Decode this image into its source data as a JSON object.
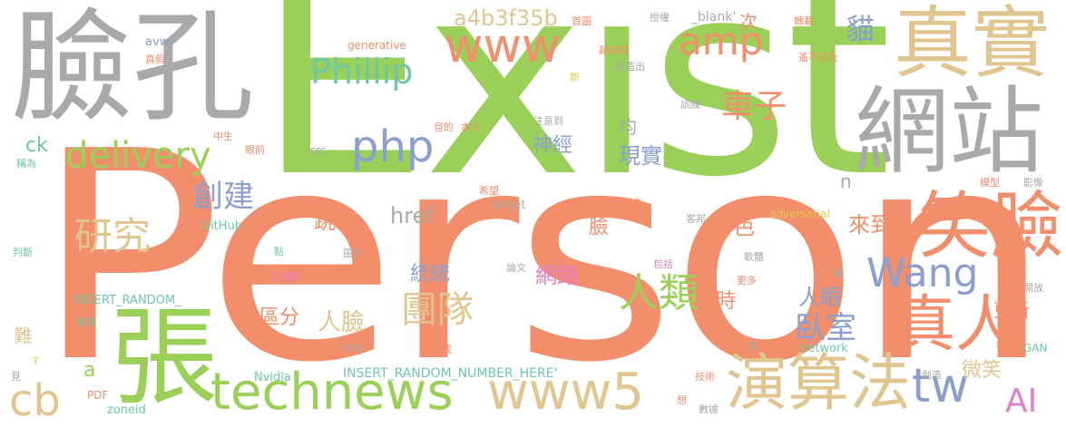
{
  "colors": {
    "orange": "#f28e6b",
    "green": "#9bd058",
    "tan": "#e0c58f",
    "gray": "#a9a9a9",
    "teal": "#6fc8a5",
    "blue": "#8a9fcf",
    "pink": "#e07fc5",
    "yellow": "#e6c84a"
  },
  "words": {
    "exist": "Exist",
    "person": "Person",
    "lian_kong": "臉孔",
    "zhen_shi": "真實",
    "wang_zhan": "網站",
    "zhang": "張",
    "xiao_lian": "笑臉",
    "zhen_ren": "真人",
    "yan_suan_fa": "演算法",
    "technews": "technews",
    "www5": "www5",
    "www": "www",
    "amp": "amp",
    "phillip": "Phillip",
    "php": "php",
    "delivery": "delivery",
    "a4b3f35b": "a4b3f35b",
    "wang": "Wang",
    "tw": "tw",
    "ai": "AI",
    "cb": "cb",
    "ren_lei": "人類",
    "tuan_dui": "團隊",
    "yan_jiu": "研究",
    "chuang_jian": "創建",
    "che_zi": "車子",
    "mao": "貓",
    "wo_shi": "臥室",
    "href": "href",
    "tiao_chu": "跳出",
    "lai_dao": "來到",
    "fu_se": "膚色",
    "ren_yan": "人眼",
    "ren_lian": "人臉",
    "qu_fen": "區分",
    "tong_tong": "統統",
    "wang_lu": "網路",
    "wei_xiao": "微笑",
    "geng_xin": "更新",
    "shi": "時",
    "xian_shi": "現實",
    "shen_jing": "神經",
    "jun": "均",
    "lian": "臉",
    "ci": "次",
    "n": "n",
    "ck": "ck",
    "a": "a",
    "nan": "難",
    "insert_random_number": "INSERT_RANDOM_NUMBER_HERE'",
    "insert_random": "INSERT_RANDOM_",
    "avw": "avw",
    "generative": "generative",
    "blank": "_blank'",
    "zhen_jia": "真假",
    "shou_tu": "首圖",
    "shou_quan": "授權",
    "zhuan_zai": "轉載",
    "yue_lai_yue": "越來越",
    "chuang_zao_chu": "創造出",
    "yao_bu_ke_ji": "遙不可及",
    "xin": "新",
    "xun_lian": "訓練",
    "zhu_yi_dao": "注意到",
    "mu_de": "目的",
    "ben_wen": "本文",
    "zhong_sheng": "中生",
    "cheng_wei": "稱為",
    "yan_qian": "眼前",
    "src": "src",
    "xi_wang": "希望",
    "target": "target",
    "zhi_zuo": "製作",
    "ke_bang": "客邦",
    "adversarial": "adversarial",
    "mo_xing": "模型",
    "ying_xiang": "影像",
    "github": "GitHub",
    "pan_duan": "判斷",
    "dian": "點",
    "gong_cheng_shi": "工程師",
    "tu_pian": "圖片",
    "lun_wen": "論文",
    "bao_kuo": "包括",
    "ruan_ti": "軟體",
    "geng_duo": "更多",
    "dang": "檔",
    "kai_fang": "開放",
    "lai_yuan": "來源",
    "img": "img",
    "xia_zai": "下載",
    "fang": "放",
    "network": "network",
    "ping_kong": "憑空",
    "gan": "GAN",
    "t": "T",
    "jian": "見",
    "nvidia": "Nvidia",
    "ji_shu": "技術",
    "chuang_zao": "創造",
    "pdf": "PDF",
    "zoneid": "zoneid",
    "xiang": "想",
    "shu_ju": "數據"
  }
}
